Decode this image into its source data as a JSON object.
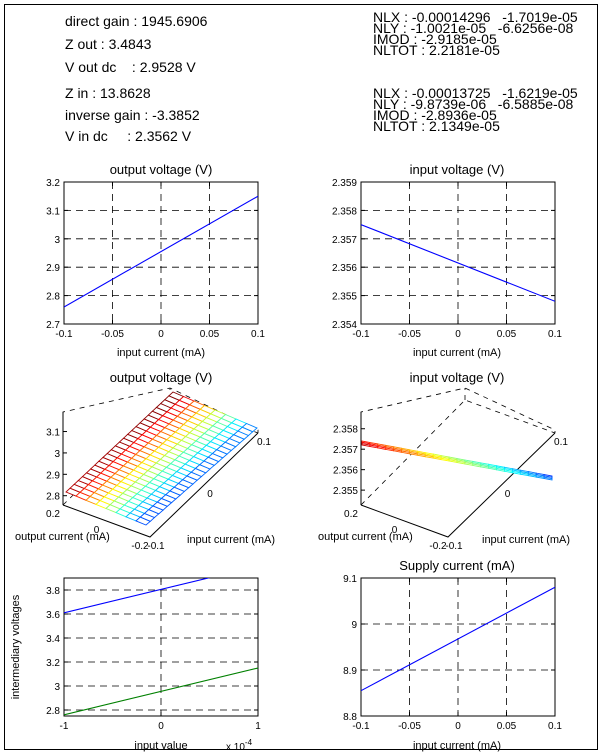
{
  "header_left": [
    {
      "label": "direct gain : 1945.6906"
    },
    {
      "label": "Z out : 3.4843"
    },
    {
      "label": "V out dc    : 2.9528 V"
    },
    {
      "label": "Z in : 13.8628"
    },
    {
      "label": "inverse gain : -3.3852"
    },
    {
      "label": "V in dc     : 2.3562 V"
    }
  ],
  "header_right": {
    "group1": [
      {
        "label": "NLX : -0.00014296   -1.7019e-05"
      },
      {
        "label": "NLY : -1.0021e-05   -6.6256e-08"
      },
      {
        "label": "IMOD : -2.9185e-05"
      },
      {
        "label": "NLTOT : 2.2181e-05"
      }
    ],
    "group2": [
      {
        "label": "NLX : -0.00013725   -1.6219e-05"
      },
      {
        "label": "NLY : -9.8739e-06   -6.5885e-08"
      },
      {
        "label": "IMOD : -2.8936e-05"
      },
      {
        "label": "NLTOT : 2.1349e-05"
      }
    ]
  },
  "colors": {
    "blue": "#0000ff",
    "green": "#008000",
    "axis": "#000000"
  },
  "chart_data": [
    {
      "id": "c1",
      "type": "line",
      "title": "output voltage (V)",
      "xlabel": "input current (mA)",
      "ylabel": "",
      "xlim": [
        -0.1,
        0.1
      ],
      "ylim": [
        2.7,
        3.2
      ],
      "xticks": [
        "-0.1",
        "-0.05",
        "0",
        "0.05",
        "0.1"
      ],
      "xtick_values": [
        -0.1,
        -0.05,
        0,
        0.05,
        0.1
      ],
      "yticks": [
        "2.7",
        "2.8",
        "2.9",
        "3",
        "3.1",
        "3.2"
      ],
      "ytick_values": [
        2.7,
        2.8,
        2.9,
        3.0,
        3.1,
        3.2
      ],
      "grid": true,
      "series": [
        {
          "color": "#0000ff",
          "x": [
            -0.1,
            0.1
          ],
          "y": [
            2.76,
            3.15
          ]
        }
      ]
    },
    {
      "id": "c2",
      "type": "line",
      "title": "input voltage (V)",
      "xlabel": "input current (mA)",
      "ylabel": "",
      "xlim": [
        -0.1,
        0.1
      ],
      "ylim": [
        2.354,
        2.359
      ],
      "xticks": [
        "-0.1",
        "-0.05",
        "0",
        "0.05",
        "0.1"
      ],
      "xtick_values": [
        -0.1,
        -0.05,
        0,
        0.05,
        0.1
      ],
      "yticks": [
        "2.354",
        "2.355",
        "2.356",
        "2.357",
        "2.358",
        "2.359"
      ],
      "ytick_values": [
        2.354,
        2.355,
        2.356,
        2.357,
        2.358,
        2.359
      ],
      "grid": true,
      "series": [
        {
          "color": "#0000ff",
          "x": [
            -0.1,
            0.1
          ],
          "y": [
            2.3575,
            2.3548
          ]
        }
      ]
    },
    {
      "id": "c3",
      "type": "surface",
      "title": "output voltage (V)",
      "xlabel": "input current (mA)",
      "ylabel": "output current (mA)",
      "xticks": [
        "-0.1",
        "0",
        "0.1"
      ],
      "yticks": [
        "-0.2",
        "0",
        "0.2"
      ],
      "zticks": [
        "2.8",
        "2.9",
        "3",
        "3.1"
      ],
      "xlim": [
        -0.1,
        0.1
      ],
      "ylim": [
        -0.2,
        0.2
      ],
      "zlim": [
        2.75,
        3.15
      ],
      "grid": true
    },
    {
      "id": "c4",
      "type": "surface",
      "title": "input voltage (V)",
      "xlabel": "input current (mA)",
      "ylabel": "output current (mA)",
      "xticks": [
        "-0.1",
        "0",
        "0.1"
      ],
      "yticks": [
        "-0.2",
        "0",
        "0.2"
      ],
      "zticks": [
        "2.355",
        "2.356",
        "2.357",
        "2.358"
      ],
      "xlim": [
        -0.1,
        0.1
      ],
      "ylim": [
        -0.2,
        0.2
      ],
      "zlim": [
        2.3545,
        2.3585
      ],
      "grid": true
    },
    {
      "id": "c5",
      "type": "line",
      "title": "",
      "xlabel": "input value",
      "ylabel": "intermediary voltages",
      "x_multiplier": "x 10",
      "x_multiplier_exp": "-4",
      "xlim": [
        -1,
        1
      ],
      "ylim": [
        2.75,
        3.9
      ],
      "xticks": [
        "-1",
        "0",
        "1"
      ],
      "xtick_values": [
        -1,
        0,
        1
      ],
      "yticks": [
        "2.8",
        "3",
        "3.2",
        "3.4",
        "3.6",
        "3.8"
      ],
      "ytick_values": [
        2.8,
        3.0,
        3.2,
        3.4,
        3.6,
        3.8
      ],
      "grid": true,
      "series": [
        {
          "color": "#0000ff",
          "x": [
            -1,
            1
          ],
          "y": [
            3.61,
            4.0
          ]
        },
        {
          "color": "#008000",
          "x": [
            -1,
            1
          ],
          "y": [
            2.76,
            3.15
          ]
        }
      ]
    },
    {
      "id": "c6",
      "type": "line",
      "title": "Supply current (mA)",
      "xlabel": "input current (mA)",
      "ylabel": "",
      "xlim": [
        -0.1,
        0.1
      ],
      "ylim": [
        8.8,
        9.1
      ],
      "xticks": [
        "-0.1",
        "-0.05",
        "0",
        "0.05",
        "0.1"
      ],
      "xtick_values": [
        -0.1,
        -0.05,
        0,
        0.05,
        0.1
      ],
      "yticks": [
        "8.8",
        "8.9",
        "9",
        "9.1"
      ],
      "ytick_values": [
        8.8,
        8.9,
        9.0,
        9.1
      ],
      "grid": true,
      "series": [
        {
          "color": "#0000ff",
          "x": [
            -0.1,
            0.1
          ],
          "y": [
            8.855,
            9.08
          ]
        }
      ]
    }
  ]
}
